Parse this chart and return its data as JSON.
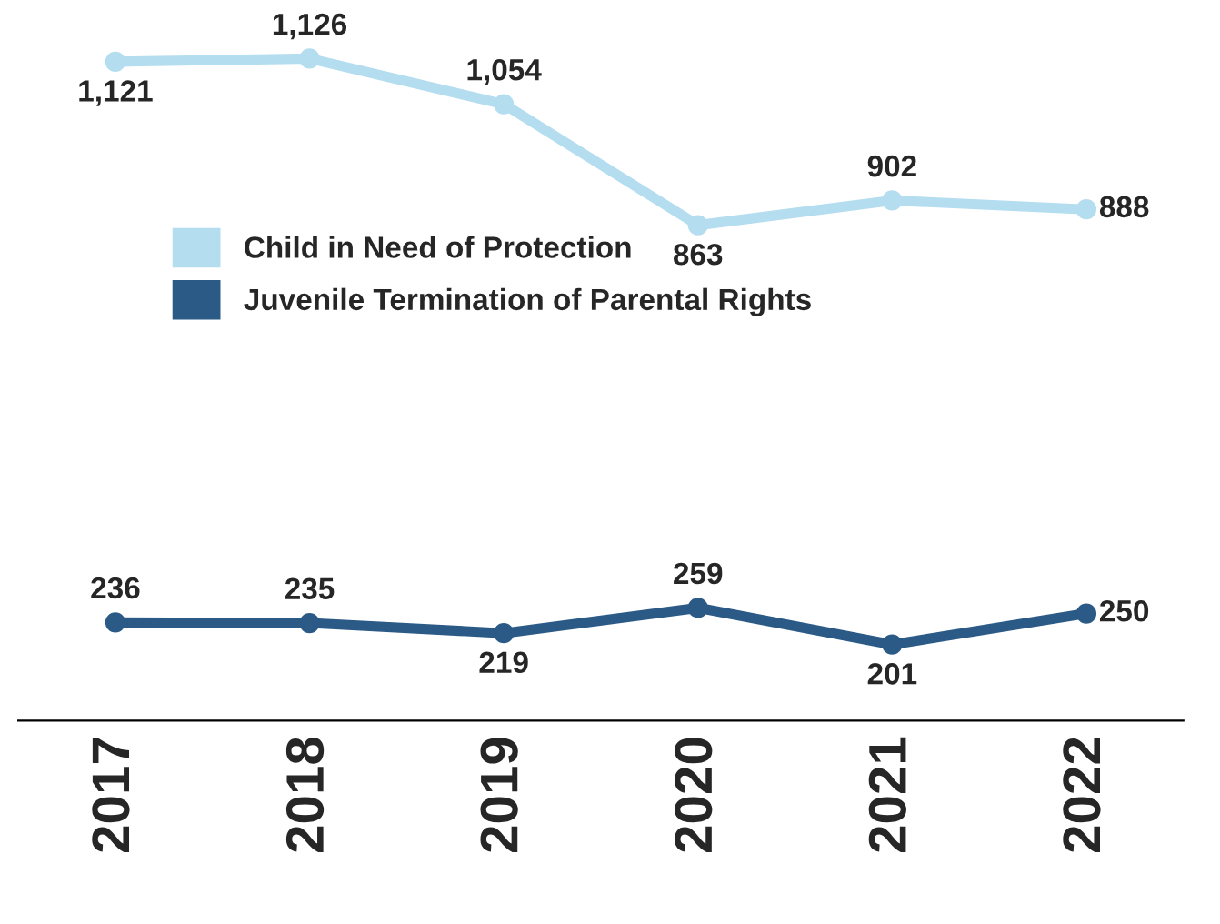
{
  "chart_data": {
    "type": "line",
    "categories": [
      "2017",
      "2018",
      "2019",
      "2020",
      "2021",
      "2022"
    ],
    "series": [
      {
        "name": "Child in Need of Protection",
        "color": "#b4ddf0",
        "values": [
          1121,
          1126,
          1054,
          863,
          902,
          888
        ],
        "value_labels": [
          "1,121",
          "1,126",
          "1,054",
          "863",
          "902",
          "888"
        ]
      },
      {
        "name": "Juvenile Termination of Parental Rights",
        "color": "#2b5a87",
        "values": [
          236,
          235,
          219,
          259,
          201,
          250
        ],
        "value_labels": [
          "236",
          "235",
          "219",
          "259",
          "201",
          "250"
        ]
      }
    ],
    "legend": "center left",
    "marker": "circle",
    "line_style": "solid",
    "grid": false,
    "tick_labels": "x"
  }
}
